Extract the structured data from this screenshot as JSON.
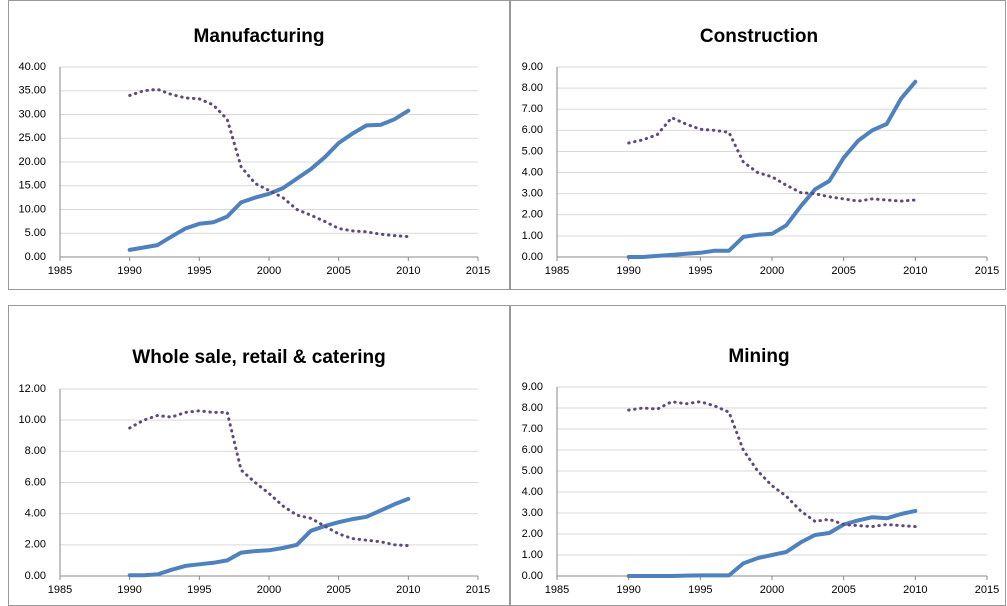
{
  "chart_data": [
    {
      "type": "line",
      "title": "Manufacturing",
      "x": [
        1990,
        1991,
        1992,
        1993,
        1994,
        1995,
        1996,
        1997,
        1998,
        1999,
        2000,
        2001,
        2002,
        2003,
        2004,
        2005,
        2006,
        2007,
        2008,
        2009,
        2010
      ],
      "series": [
        {
          "color": "#4f81bd",
          "style": "solid",
          "values": [
            1.5,
            2,
            2.5,
            4.3,
            6,
            7,
            7.3,
            8.5,
            11.5,
            12.5,
            13.3,
            14.5,
            16.5,
            18.5,
            21,
            24,
            26,
            27.7,
            27.8,
            29,
            30.8
          ]
        },
        {
          "color": "#604a7b",
          "style": "dotted",
          "values": [
            34,
            35,
            35.3,
            34.2,
            33.5,
            33.3,
            32,
            29,
            19,
            15.5,
            14,
            12.5,
            10,
            8.8,
            7.5,
            6,
            5.5,
            5.3,
            4.8,
            4.5,
            4.3
          ]
        }
      ],
      "xlim": [
        1985,
        2015
      ],
      "xticks": [
        1985,
        1990,
        1995,
        2000,
        2005,
        2010,
        2015
      ],
      "ylim": [
        0,
        40
      ],
      "yticks": [
        {
          "value": 0,
          "label": "0.00"
        },
        {
          "value": 5,
          "label": "5.00"
        },
        {
          "value": 10,
          "label": "10.00"
        },
        {
          "value": 15,
          "label": "15.00"
        },
        {
          "value": 20,
          "label": "20.00"
        },
        {
          "value": 25,
          "label": "25.00"
        },
        {
          "value": 30,
          "label": "30.00"
        },
        {
          "value": 35,
          "label": "35.00"
        },
        {
          "value": 40,
          "label": "40.00"
        }
      ],
      "grid": true
    },
    {
      "type": "line",
      "title": "Construction",
      "x": [
        1990,
        1991,
        1992,
        1993,
        1994,
        1995,
        1996,
        1997,
        1998,
        1999,
        2000,
        2001,
        2002,
        2003,
        2004,
        2005,
        2006,
        2007,
        2008,
        2009,
        2010
      ],
      "series": [
        {
          "color": "#4f81bd",
          "style": "solid",
          "values": [
            0,
            0,
            0.05,
            0.1,
            0.15,
            0.2,
            0.3,
            0.3,
            0.95,
            1.05,
            1.1,
            1.5,
            2.4,
            3.2,
            3.6,
            4.7,
            5.5,
            6,
            6.3,
            7.5,
            8.3
          ]
        },
        {
          "color": "#604a7b",
          "style": "dotted",
          "values": [
            5.4,
            5.55,
            5.8,
            6.6,
            6.3,
            6.05,
            6,
            5.9,
            4.5,
            4,
            3.8,
            3.4,
            3.05,
            3,
            2.85,
            2.75,
            2.65,
            2.75,
            2.7,
            2.65,
            2.7
          ]
        }
      ],
      "xlim": [
        1985,
        2015
      ],
      "xticks": [
        1985,
        1990,
        1995,
        2000,
        2005,
        2010,
        2015
      ],
      "ylim": [
        0,
        9
      ],
      "yticks": [
        {
          "value": 0,
          "label": "0.00"
        },
        {
          "value": 1,
          "label": "1.00"
        },
        {
          "value": 2,
          "label": "2.00"
        },
        {
          "value": 3,
          "label": "3.00"
        },
        {
          "value": 4,
          "label": "4.00"
        },
        {
          "value": 5,
          "label": "5.00"
        },
        {
          "value": 6,
          "label": "6.00"
        },
        {
          "value": 7,
          "label": "7.00"
        },
        {
          "value": 8,
          "label": "8.00"
        },
        {
          "value": 9,
          "label": "9.00"
        }
      ],
      "grid": true
    },
    {
      "type": "line",
      "title": "Whole sale, retail & catering",
      "x": [
        1990,
        1991,
        1992,
        1993,
        1994,
        1995,
        1996,
        1997,
        1998,
        1999,
        2000,
        2001,
        2002,
        2003,
        2004,
        2005,
        2006,
        2007,
        2008,
        2009,
        2010
      ],
      "series": [
        {
          "color": "#4f81bd",
          "style": "solid",
          "values": [
            0.05,
            0.05,
            0.1,
            0.4,
            0.65,
            0.75,
            0.85,
            1,
            1.5,
            1.6,
            1.65,
            1.8,
            2,
            2.9,
            3.2,
            3.45,
            3.65,
            3.8,
            4.2,
            4.6,
            4.95
          ]
        },
        {
          "color": "#604a7b",
          "style": "dotted",
          "values": [
            9.5,
            10,
            10.3,
            10.2,
            10.5,
            10.6,
            10.5,
            10.5,
            6.8,
            6,
            5.3,
            4.5,
            3.9,
            3.7,
            3.2,
            2.7,
            2.4,
            2.3,
            2.2,
            2,
            1.95
          ]
        }
      ],
      "xlim": [
        1985,
        2015
      ],
      "xticks": [
        1985,
        1990,
        1995,
        2000,
        2005,
        2010,
        2015
      ],
      "ylim": [
        0,
        12
      ],
      "yticks": [
        {
          "value": 0,
          "label": "0.00"
        },
        {
          "value": 2,
          "label": "2.00"
        },
        {
          "value": 4,
          "label": "4.00"
        },
        {
          "value": 6,
          "label": "6.00"
        },
        {
          "value": 8,
          "label": "8.00"
        },
        {
          "value": 10,
          "label": "10.00"
        },
        {
          "value": 12,
          "label": "12.00"
        }
      ],
      "grid": true
    },
    {
      "type": "line",
      "title": "Mining",
      "x": [
        1990,
        1991,
        1992,
        1993,
        1994,
        1995,
        1996,
        1997,
        1998,
        1999,
        2000,
        2001,
        2002,
        2003,
        2004,
        2005,
        2006,
        2007,
        2008,
        2009,
        2010
      ],
      "series": [
        {
          "color": "#4f81bd",
          "style": "solid",
          "values": [
            0,
            0,
            0,
            0,
            0.02,
            0.03,
            0.03,
            0.03,
            0.6,
            0.85,
            1,
            1.15,
            1.6,
            1.95,
            2.05,
            2.45,
            2.65,
            2.8,
            2.75,
            2.95,
            3.1
          ]
        },
        {
          "color": "#604a7b",
          "style": "dotted",
          "values": [
            7.9,
            8,
            7.95,
            8.3,
            8.2,
            8.3,
            8.1,
            7.8,
            6,
            5,
            4.3,
            3.8,
            3.1,
            2.6,
            2.7,
            2.45,
            2.4,
            2.35,
            2.45,
            2.4,
            2.35
          ]
        }
      ],
      "xlim": [
        1985,
        2015
      ],
      "xticks": [
        1985,
        1990,
        1995,
        2000,
        2005,
        2010,
        2015
      ],
      "ylim": [
        0,
        9
      ],
      "yticks": [
        {
          "value": 0,
          "label": "0.00"
        },
        {
          "value": 1,
          "label": "1.00"
        },
        {
          "value": 2,
          "label": "2.00"
        },
        {
          "value": 3,
          "label": "3.00"
        },
        {
          "value": 4,
          "label": "4.00"
        },
        {
          "value": 5,
          "label": "5.00"
        },
        {
          "value": 6,
          "label": "6.00"
        },
        {
          "value": 7,
          "label": "7.00"
        },
        {
          "value": 8,
          "label": "8.00"
        },
        {
          "value": 9,
          "label": "9.00"
        }
      ],
      "grid": true
    }
  ]
}
